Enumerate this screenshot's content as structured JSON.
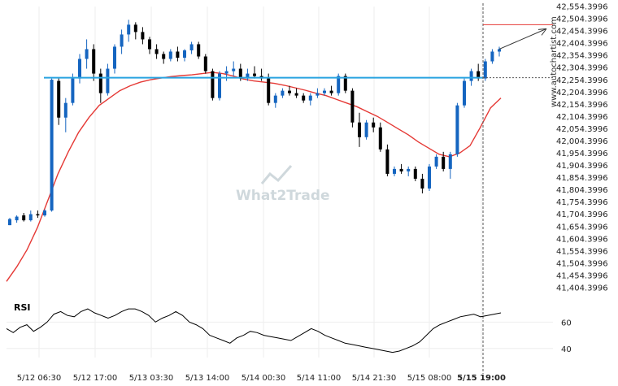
{
  "chart_data": [
    {
      "type": "candlestick",
      "source_label": "www.autochartist.com",
      "watermark": "What2Trade",
      "ylim": [
        41404.3996,
        42554.3996
      ],
      "y_ticks": [
        "42,554.3996",
        "42,504.3996",
        "42,454.3996",
        "42,404.3996",
        "42,354.3996",
        "42,304.3996",
        "42,254.3996",
        "42,204.3996",
        "42,154.3996",
        "42,104.3996",
        "42,054.3996",
        "42,004.3996",
        "41,954.3996",
        "41,904.3996",
        "41,854.3996",
        "41,804.3996",
        "41,754.3996",
        "41,704.3996",
        "41,654.3996",
        "41,604.3996",
        "41,554.3996",
        "41,504.3996",
        "41,454.3996",
        "41,404.3996"
      ],
      "x_ticks": [
        {
          "label": "5/12 06:30",
          "bold": false
        },
        {
          "label": "5/12 17:00",
          "bold": false
        },
        {
          "label": "5/13 03:30",
          "bold": false
        },
        {
          "label": "5/13 14:00",
          "bold": false
        },
        {
          "label": "5/14 00:30",
          "bold": false
        },
        {
          "label": "5/14 11:00",
          "bold": false
        },
        {
          "label": "5/14 21:30",
          "bold": false
        },
        {
          "label": "5/15 08:00",
          "bold": false
        },
        {
          "label": "5/15 19:00",
          "bold": true
        }
      ],
      "horizontal_level": 42263,
      "target_level": 42480,
      "marker_time": "5/15 19:00",
      "colors": {
        "up": "#1565c0",
        "down": "#000000",
        "ma": "#e53935",
        "level": "#29a3e0",
        "rsi": "#000000"
      },
      "candles": [
        [
          41660,
          41690,
          41660,
          41685
        ],
        [
          41680,
          41700,
          41670,
          41695
        ],
        [
          41700,
          41710,
          41675,
          41680
        ],
        [
          41680,
          41720,
          41675,
          41705
        ],
        [
          41705,
          41720,
          41690,
          41700
        ],
        [
          41700,
          41725,
          41695,
          41720
        ],
        [
          41720,
          42260,
          41715,
          42255
        ],
        [
          42250,
          42260,
          42070,
          42100
        ],
        [
          42100,
          42180,
          42040,
          42160
        ],
        [
          42160,
          42280,
          42150,
          42260
        ],
        [
          42260,
          42360,
          42240,
          42340
        ],
        [
          42340,
          42420,
          42300,
          42380
        ],
        [
          42380,
          42400,
          42250,
          42280
        ],
        [
          42280,
          42300,
          42160,
          42200
        ],
        [
          42200,
          42320,
          42190,
          42300
        ],
        [
          42300,
          42400,
          42280,
          42390
        ],
        [
          42390,
          42460,
          42360,
          42440
        ],
        [
          42440,
          42500,
          42410,
          42480
        ],
        [
          42480,
          42490,
          42420,
          42450
        ],
        [
          42450,
          42470,
          42400,
          42420
        ],
        [
          42420,
          42430,
          42360,
          42380
        ],
        [
          42380,
          42400,
          42340,
          42360
        ],
        [
          42360,
          42370,
          42320,
          42340
        ],
        [
          42340,
          42380,
          42330,
          42370
        ],
        [
          42370,
          42390,
          42330,
          42345
        ],
        [
          42345,
          42380,
          42330,
          42375
        ],
        [
          42375,
          42410,
          42360,
          42400
        ],
        [
          42400,
          42410,
          42340,
          42350
        ],
        [
          42350,
          42360,
          42280,
          42290
        ],
        [
          42290,
          42300,
          42170,
          42180
        ],
        [
          42180,
          42290,
          42170,
          42280
        ],
        [
          42280,
          42310,
          42250,
          42290
        ],
        [
          42290,
          42330,
          42270,
          42300
        ],
        [
          42300,
          42320,
          42250,
          42260
        ],
        [
          42260,
          42300,
          42250,
          42280
        ],
        [
          42280,
          42310,
          42260,
          42270
        ],
        [
          42270,
          42300,
          42250,
          42260
        ],
        [
          42260,
          42280,
          42150,
          42160
        ],
        [
          42160,
          42200,
          42140,
          42190
        ],
        [
          42190,
          42220,
          42180,
          42210
        ],
        [
          42210,
          42230,
          42190,
          42200
        ],
        [
          42200,
          42220,
          42180,
          42190
        ],
        [
          42190,
          42200,
          42160,
          42170
        ],
        [
          42170,
          42200,
          42150,
          42190
        ],
        [
          42190,
          42220,
          42180,
          42200
        ],
        [
          42200,
          42220,
          42190,
          42210
        ],
        [
          42210,
          42230,
          42190,
          42200
        ],
        [
          42200,
          42280,
          42190,
          42270
        ],
        [
          42270,
          42280,
          42200,
          42210
        ],
        [
          42210,
          42220,
          42060,
          42080
        ],
        [
          42080,
          42120,
          41980,
          42020
        ],
        [
          42020,
          42090,
          42010,
          42080
        ],
        [
          42080,
          42100,
          42040,
          42060
        ],
        [
          42060,
          42080,
          41960,
          41970
        ],
        [
          41970,
          41990,
          41860,
          41870
        ],
        [
          41870,
          41900,
          41860,
          41890
        ],
        [
          41890,
          41910,
          41870,
          41880
        ],
        [
          41880,
          41900,
          41860,
          41890
        ],
        [
          41890,
          41900,
          41840,
          41850
        ],
        [
          41850,
          41870,
          41790,
          41810
        ],
        [
          41810,
          41910,
          41800,
          41900
        ],
        [
          41900,
          41950,
          41890,
          41940
        ],
        [
          41940,
          41960,
          41880,
          41890
        ],
        [
          41890,
          41960,
          41850,
          41950
        ],
        [
          41950,
          42160,
          41940,
          42150
        ],
        [
          42150,
          42260,
          42140,
          42250
        ],
        [
          42250,
          42300,
          42230,
          42290
        ],
        [
          42290,
          42320,
          42250,
          42260
        ],
        [
          42260,
          42340,
          42250,
          42330
        ],
        [
          42330,
          42380,
          42320,
          42370
        ],
        [
          42370,
          42390,
          42350,
          42380
        ]
      ],
      "ma": [
        41430,
        41490,
        41560,
        41650,
        41760,
        41870,
        41960,
        42040,
        42100,
        42150,
        42180,
        42210,
        42230,
        42245,
        42255,
        42262,
        42268,
        42272,
        42275,
        42280,
        42285,
        42280,
        42270,
        42258,
        42250,
        42245,
        42240,
        42232,
        42222,
        42212,
        42200,
        42190,
        42175,
        42160,
        42145,
        42125,
        42105,
        42080,
        42055,
        42030,
        42000,
        41975,
        41950,
        41940,
        41955,
        41985,
        42060,
        42140,
        42180
      ],
      "rsi_ylim": [
        30,
        75
      ],
      "rsi_ticks": [
        60,
        40
      ],
      "rsi": [
        55,
        52,
        56,
        58,
        53,
        56,
        60,
        66,
        68,
        65,
        64,
        68,
        70,
        67,
        65,
        63,
        65,
        68,
        70,
        70,
        68,
        65,
        60,
        63,
        65,
        68,
        65,
        60,
        58,
        55,
        50,
        48,
        46,
        44,
        48,
        50,
        53,
        52,
        50,
        49,
        48,
        47,
        46,
        49,
        52,
        55,
        53,
        50,
        48,
        46,
        44,
        43,
        42,
        41,
        40,
        39,
        38,
        37,
        38,
        40,
        42,
        45,
        50,
        55,
        58,
        60,
        62,
        64,
        65,
        66,
        64,
        65,
        66,
        67
      ]
    }
  ]
}
